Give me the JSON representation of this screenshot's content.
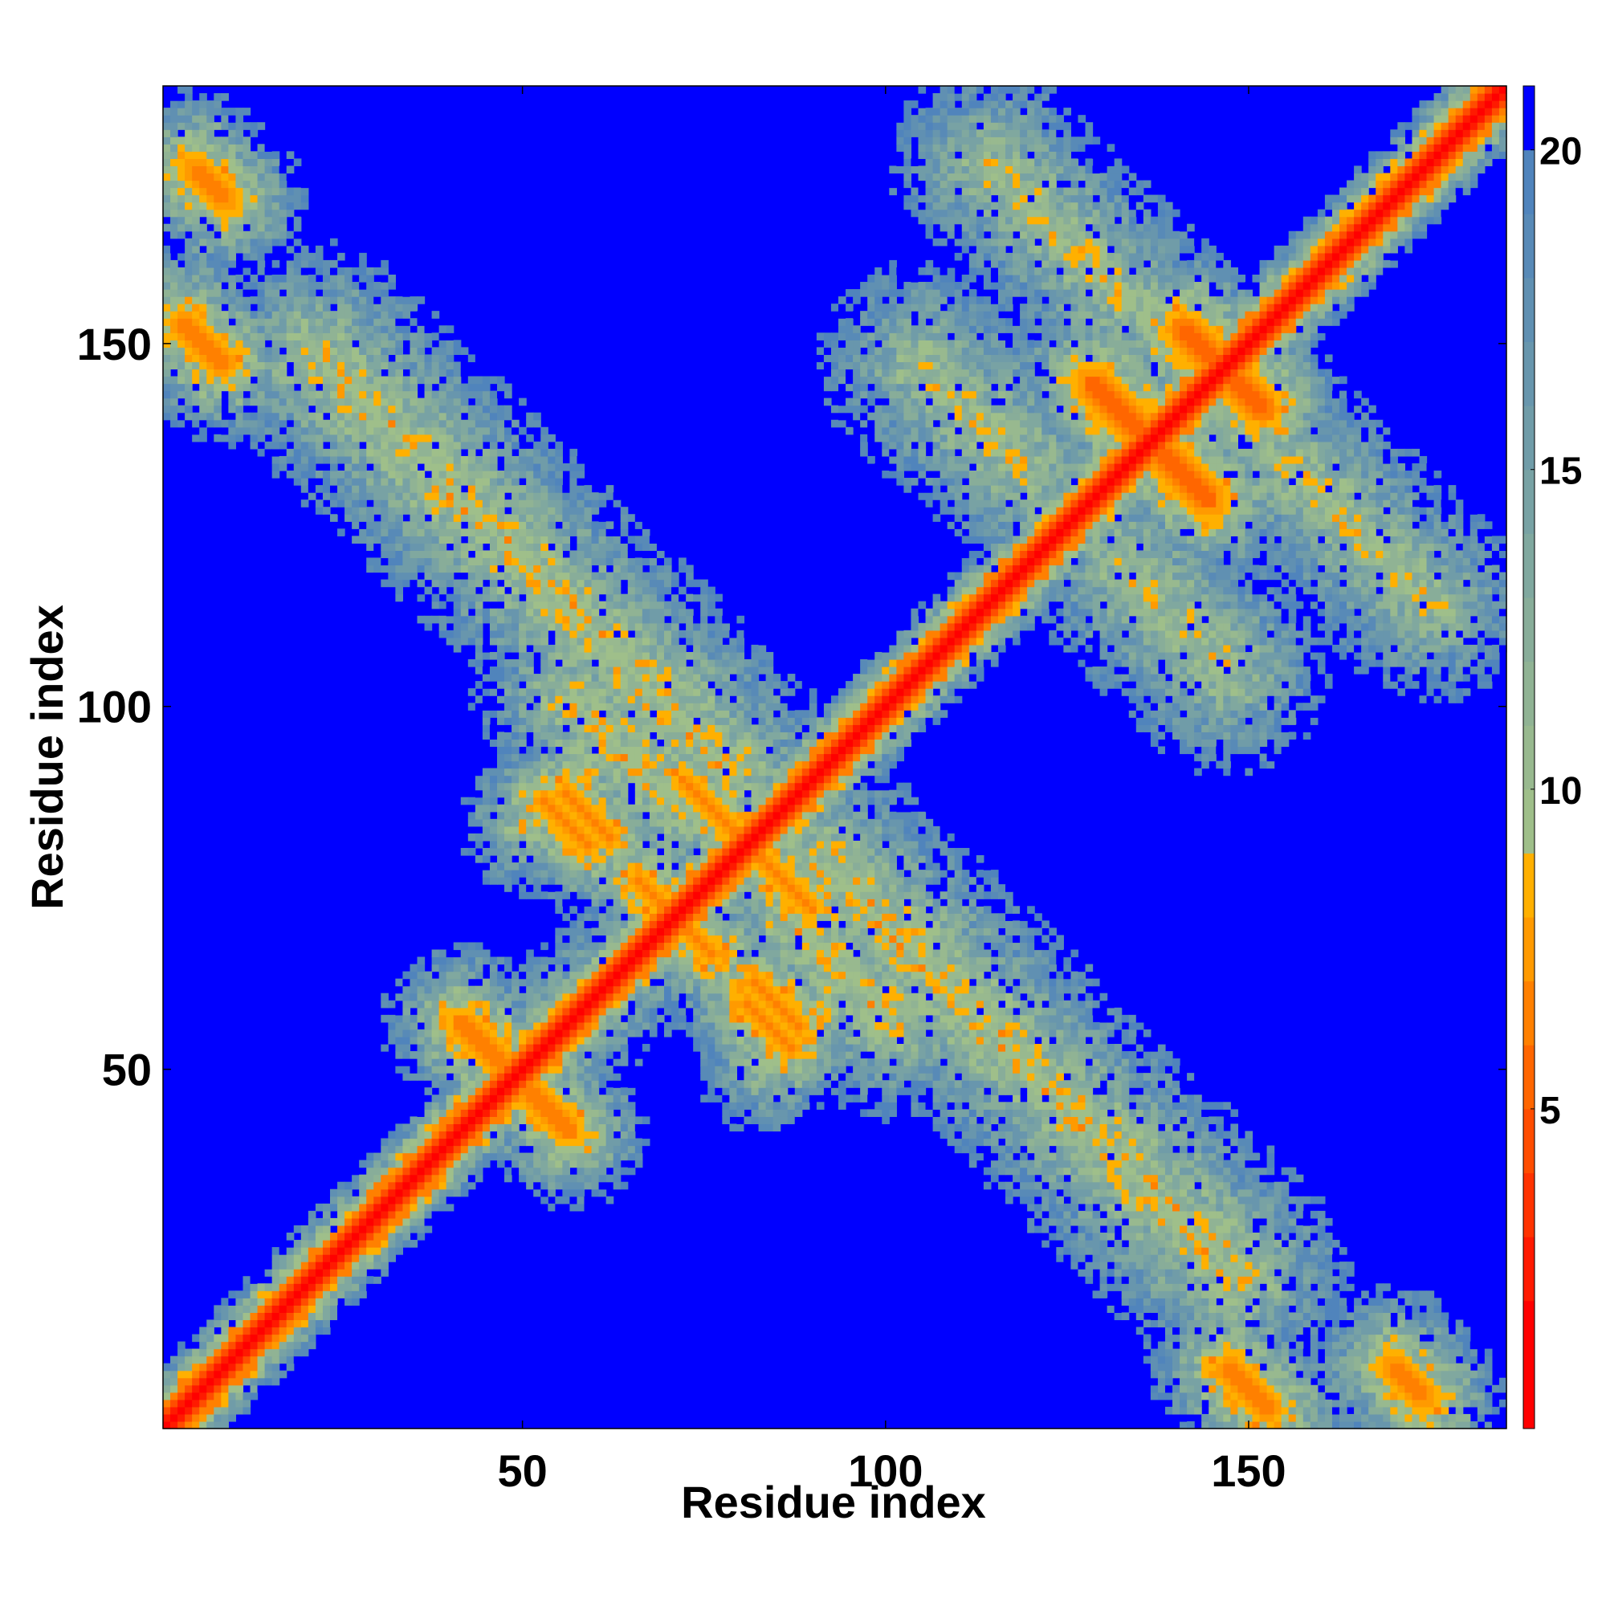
{
  "chart_data": {
    "type": "heatmap",
    "title": "",
    "xlabel": "Residue index",
    "ylabel": "Residue index",
    "xlim": [
      1,
      185
    ],
    "ylim": [
      1,
      185
    ],
    "x_ticks": [
      50,
      100,
      150
    ],
    "y_ticks": [
      50,
      100,
      150
    ],
    "colorbar": {
      "ticks": [
        5,
        10,
        15,
        20
      ],
      "range": [
        0,
        21
      ],
      "levels": [
        {
          "max": 2,
          "color": "#ff0000"
        },
        {
          "max": 3,
          "color": "#ff1a00"
        },
        {
          "max": 4,
          "color": "#ff3300"
        },
        {
          "max": 5,
          "color": "#ff4d00"
        },
        {
          "max": 6,
          "color": "#ff6600"
        },
        {
          "max": 7,
          "color": "#ff8000"
        },
        {
          "max": 8,
          "color": "#ff9a00"
        },
        {
          "max": 9,
          "color": "#ffb000"
        },
        {
          "max": 10,
          "color": "#9fbf8a"
        },
        {
          "max": 11,
          "color": "#98b98f"
        },
        {
          "max": 12,
          "color": "#90b394"
        },
        {
          "max": 13,
          "color": "#88ad99"
        },
        {
          "max": 14,
          "color": "#80a89f"
        },
        {
          "max": 15,
          "color": "#78a2a4"
        },
        {
          "max": 16,
          "color": "#709ca8"
        },
        {
          "max": 17,
          "color": "#6896ad"
        },
        {
          "max": 18,
          "color": "#6090b2"
        },
        {
          "max": 19,
          "color": "#588ab7"
        },
        {
          "max": 20,
          "color": "#5084bc"
        },
        {
          "max": 21,
          "color": "#0000ff"
        }
      ]
    },
    "background_color": "#0000ff",
    "symmetric": true,
    "features": [
      {
        "kind": "diagonal",
        "from": 1,
        "to": 185,
        "min_value": 0
      },
      {
        "kind": "antiparallel_contact",
        "center": [
          53,
          45
        ],
        "halflength": 5,
        "min_value": 6,
        "halo": 9
      },
      {
        "kind": "antiparallel_contact",
        "center": [
          56,
          84
        ],
        "halflength": 4,
        "min_value": 6,
        "halo": 8
      },
      {
        "kind": "antiparallel_contact",
        "center": [
          69,
          73
        ],
        "halflength": 4,
        "min_value": 6,
        "halo": 8
      },
      {
        "kind": "antiparallel_contact",
        "center": [
          76,
          86
        ],
        "halflength": 5,
        "min_value": 6,
        "halo": 8
      },
      {
        "kind": "antiparallel_contact",
        "center": [
          85,
          59
        ],
        "halflength": 4,
        "min_value": 6,
        "halo": 8
      },
      {
        "kind": "antiparallel_contact",
        "center": [
          132,
          141
        ],
        "halflength": 5,
        "min_value": 5,
        "halo": 9
      },
      {
        "kind": "antiparallel_contact",
        "center": [
          146,
          147
        ],
        "halflength": 7,
        "min_value": 5,
        "halo": 9
      },
      {
        "kind": "antiparallel_contact",
        "center": [
          150,
          6
        ],
        "halflength": 4,
        "min_value": 6,
        "halo": 9
      },
      {
        "kind": "antiparallel_contact",
        "center": [
          172,
          7
        ],
        "halflength": 3,
        "min_value": 6,
        "halo": 9
      },
      {
        "kind": "antiparallel_contact",
        "center": [
          120,
          50
        ],
        "halflength": 40,
        "min_value": 9,
        "halo": 16
      },
      {
        "kind": "antiparallel_contact",
        "center": [
          94,
          64
        ],
        "halflength": 10,
        "min_value": 9,
        "halo": 14
      },
      {
        "kind": "antiparallel_contact",
        "center": [
          140,
          112
        ],
        "halflength": 10,
        "min_value": 10,
        "halo": 16
      },
      {
        "kind": "antiparallel_contact",
        "center": [
          165,
          124
        ],
        "halflength": 14,
        "min_value": 10,
        "halo": 15
      },
      {
        "kind": "parallel_contact",
        "center": [
          88,
          55
        ],
        "halflength": 6,
        "min_value": 9,
        "halo": 10
      },
      {
        "kind": "parallel_contact",
        "center": [
          60,
          60
        ],
        "halflength": 10,
        "min_value": 10,
        "halo": 12
      }
    ]
  }
}
